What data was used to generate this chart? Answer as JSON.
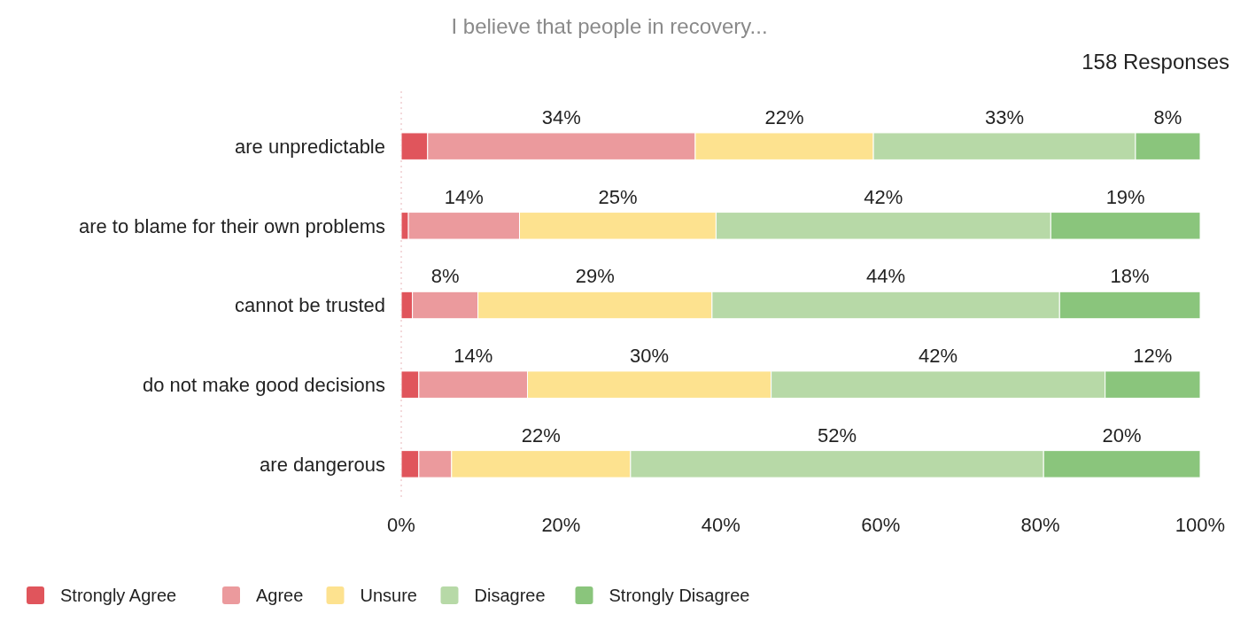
{
  "chart_data": {
    "type": "bar",
    "orientation": "horizontal",
    "stacked": true,
    "title": "I believe that people in recovery...",
    "subtitle": "158 Responses",
    "categories": [
      "are unpredictable",
      "are to blame for their own problems",
      "cannot be trusted",
      "do not make good decisions",
      "are dangerous"
    ],
    "series": [
      {
        "name": "Strongly Agree",
        "color": "#e0555c",
        "values": [
          3.3,
          0.9,
          1.4,
          2.2,
          2.2
        ],
        "value_labels": [
          null,
          null,
          null,
          null,
          null
        ]
      },
      {
        "name": "Agree",
        "color": "#eb9a9d",
        "values": [
          33.5,
          13.9,
          8.2,
          13.6,
          4.1
        ],
        "value_labels": [
          "34%",
          "14%",
          "8%",
          "14%",
          null
        ]
      },
      {
        "name": "Unsure",
        "color": "#fde28f",
        "values": [
          22.3,
          24.6,
          29.3,
          30.5,
          22.4
        ],
        "value_labels": [
          "22%",
          "25%",
          "29%",
          "30%",
          "22%"
        ]
      },
      {
        "name": "Disagree",
        "color": "#b7d9a7",
        "values": [
          32.8,
          41.9,
          43.5,
          41.8,
          51.7
        ],
        "value_labels": [
          "33%",
          "42%",
          "44%",
          "42%",
          "52%"
        ]
      },
      {
        "name": "Strongly Disagree",
        "color": "#8ac57c",
        "values": [
          8.1,
          18.7,
          17.6,
          11.9,
          19.6
        ],
        "value_labels": [
          "8%",
          "19%",
          "18%",
          "12%",
          "20%"
        ]
      }
    ],
    "xlim": [
      0,
      100
    ],
    "xticks": [
      {
        "value": 0,
        "label": "0%"
      },
      {
        "value": 20,
        "label": "20%"
      },
      {
        "value": 40,
        "label": "40%"
      },
      {
        "value": 60,
        "label": "60%"
      },
      {
        "value": 80,
        "label": "80%"
      },
      {
        "value": 100,
        "label": "100%"
      }
    ],
    "legend": "bottom left"
  }
}
